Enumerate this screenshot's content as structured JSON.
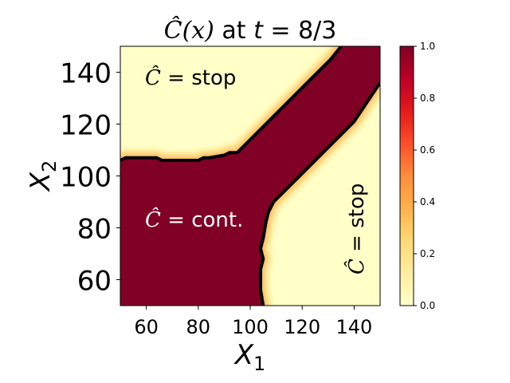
{
  "chart_data": {
    "type": "heatmap",
    "title": {
      "math": "Ĉ(x)",
      "mid": " at ",
      "var": "t",
      "rest": " = 8/3"
    },
    "xlabel": {
      "var": "X",
      "sub": "1"
    },
    "ylabel": {
      "var": "X",
      "sub": "2"
    },
    "xlim": [
      50,
      150
    ],
    "ylim": [
      50,
      150
    ],
    "xticks": [
      60,
      80,
      100,
      120,
      140
    ],
    "yticks": [
      60,
      80,
      100,
      120,
      140
    ],
    "colorbar": {
      "range": [
        0.0,
        1.0
      ],
      "ticks": [
        "0.0",
        "0.2",
        "0.4",
        "0.6",
        "0.8",
        "1.0"
      ],
      "colors": [
        "#ffffcc",
        "#ffeda0",
        "#fed976",
        "#feb24c",
        "#fd8d3c",
        "#fc4e2a",
        "#e31a1c",
        "#bd0026",
        "#800026"
      ]
    },
    "regions": [
      {
        "name": "continuation",
        "value": 1.0,
        "description": "region below X2≈106 and left of X1≈104, plus diagonal band between X2≈X1+12 and X2≈X1-4"
      },
      {
        "name": "stop",
        "value": 0.0
      }
    ],
    "boundary_upper": [
      [
        50,
        106
      ],
      [
        52,
        107
      ],
      [
        64,
        107
      ],
      [
        66,
        106
      ],
      [
        80,
        106
      ],
      [
        82,
        107
      ],
      [
        84,
        107
      ],
      [
        90,
        108
      ],
      [
        92,
        109
      ],
      [
        95,
        109
      ],
      [
        98,
        112
      ],
      [
        105,
        119
      ],
      [
        115,
        129
      ],
      [
        125,
        139
      ],
      [
        131,
        145
      ],
      [
        135,
        150
      ]
    ],
    "boundary_lower": [
      [
        105,
        50
      ],
      [
        104,
        56
      ],
      [
        104,
        64
      ],
      [
        105,
        68
      ],
      [
        104,
        72
      ],
      [
        105,
        76
      ],
      [
        106,
        82
      ],
      [
        107,
        86
      ],
      [
        109,
        90
      ],
      [
        111,
        92
      ],
      [
        114,
        95
      ],
      [
        120,
        101
      ],
      [
        130,
        111
      ],
      [
        140,
        121
      ],
      [
        150,
        136
      ]
    ],
    "annotations": {
      "top_left": {
        "math": "Ĉ",
        "text": " = stop"
      },
      "middle_left": {
        "math": "Ĉ",
        "text": " = cont."
      },
      "right": {
        "math": "Ĉ",
        "text": " = stop"
      }
    }
  }
}
